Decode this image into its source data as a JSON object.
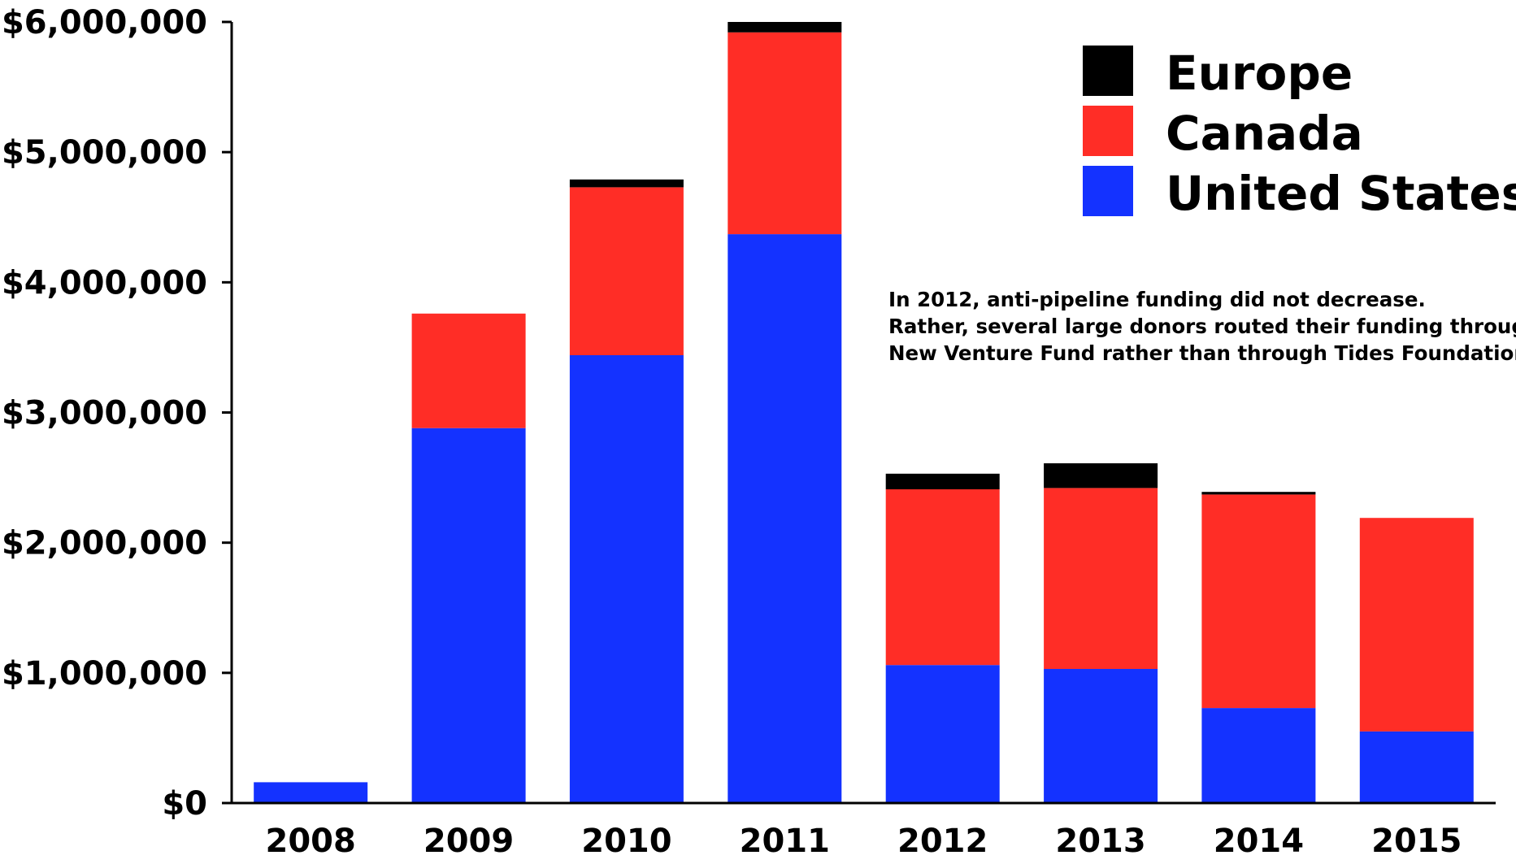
{
  "chart_data": {
    "type": "bar",
    "stacked": true,
    "categories": [
      "2008",
      "2009",
      "2010",
      "2011",
      "2012",
      "2013",
      "2014",
      "2015"
    ],
    "series": [
      {
        "name": "United States",
        "color": "#1432ff",
        "values": [
          160000,
          2880000,
          3440000,
          4370000,
          1060000,
          1030000,
          730000,
          550000
        ]
      },
      {
        "name": "Canada",
        "color": "#ff2d26",
        "values": [
          0,
          880000,
          1290000,
          1550000,
          1350000,
          1390000,
          1640000,
          1640000
        ]
      },
      {
        "name": "Europe",
        "color": "#000000",
        "values": [
          0,
          0,
          60000,
          80000,
          120000,
          190000,
          20000,
          0
        ]
      }
    ],
    "ylim": [
      0,
      6000000
    ],
    "yticks": [
      "$0",
      "$1,000,000",
      "$2,000,000",
      "$3,000,000",
      "$4,000,000",
      "$5,000,000",
      "$6,000,000"
    ],
    "legend": {
      "placement": "top-right",
      "entries": [
        "Europe",
        "Canada",
        "United States"
      ]
    },
    "annotation": [
      "In 2012, anti-pipeline funding did not decrease.",
      "Rather, several large donors routed their funding through",
      "New Venture Fund rather than through Tides Foundation."
    ],
    "grid": false
  }
}
